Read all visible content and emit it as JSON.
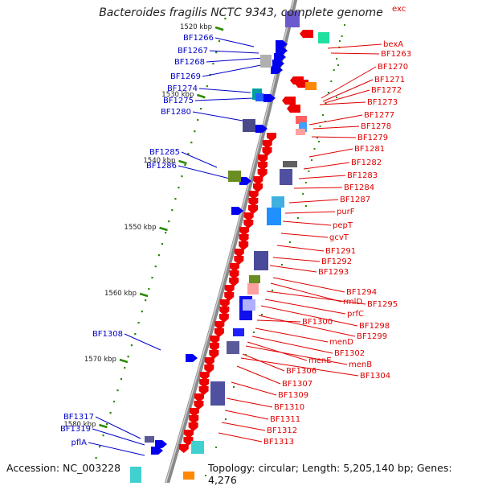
{
  "title": "Bacteroides fragilis NCTC 9343, complete genome",
  "footer": {
    "accession": "Accession: NC_003228",
    "summary": "Topology: circular; Length: 5,205,140 bp; Genes: 4,276"
  },
  "colors": {
    "forward_label": "#0000c8",
    "reverse_label": "#e00000",
    "backbone": "#8a8a8a",
    "forward_arrow": "#0000ee",
    "reverse_arrow": "#ee0000",
    "tick": "#2a8a00"
  },
  "kbp_ticks": [
    "1520 kbp",
    "1530 kbp",
    "1540 kbp",
    "1550 kbp",
    "1560 kbp",
    "1570 kbp",
    "1580 kbp"
  ],
  "forward_labels": [
    "BF1266",
    "BF1267",
    "BF1268",
    "BF1269",
    "BF1274",
    "BF1275",
    "BF1280",
    "BF1285",
    "BF1286",
    "BF1308",
    "BF1317",
    "BF1319",
    "pflA"
  ],
  "reverse_labels": [
    "exc",
    "bexA",
    "BF1263",
    "BF1270",
    "BF1271",
    "BF1272",
    "BF1273",
    "BF1277",
    "BF1278",
    "BF1279",
    "BF1281",
    "BF1282",
    "BF1283",
    "BF1284",
    "BF1287",
    "purF",
    "pepT",
    "gcvT",
    "BF1291",
    "BF1292",
    "BF1293",
    "BF1294",
    "rmlD",
    "BF1295",
    "prfC",
    "BF1298",
    "BF1299",
    "BF1300",
    "menD",
    "BF1302",
    "menE",
    "menB",
    "BF1306",
    "BF1304",
    "BF1307",
    "BF1309",
    "BF1310",
    "BF1311",
    "BF1312",
    "BF1313"
  ]
}
